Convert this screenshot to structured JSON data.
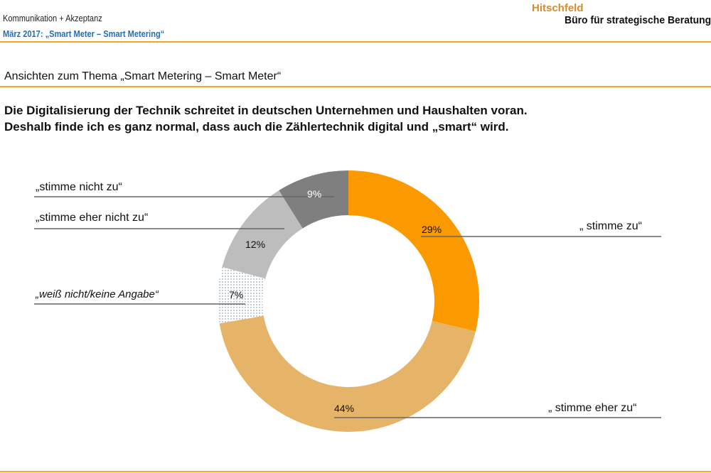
{
  "header": {
    "line1": "Kommunikation + Akzeptanz",
    "line2": "März 2017: „Smart Meter – Smart Metering“",
    "brand_name": "Hitschfeld",
    "brand_sub": "Büro für strategische Beratung"
  },
  "section_title": "Ansichten zum Thema „Smart Metering – Smart Meter“",
  "question": {
    "line1": "Die Digitalisierung der Technik schreitet in deutschen Unternehmen und Haushalten voran.",
    "line2": "Deshalb finde ich es ganz normal, dass auch die Zählertechnik digital und „smart“ wird."
  },
  "colors": {
    "accent": "#f5a623",
    "blue": "#1f6fbf"
  },
  "chart_data": {
    "type": "pie",
    "donut": true,
    "start": "top",
    "direction": "clockwise",
    "slices": [
      {
        "name": "„ stimme zu“",
        "value": 29,
        "label": "29%",
        "color": "#fa9a00"
      },
      {
        "name": "„ stimme eher zu“",
        "value": 44,
        "label": "44%",
        "color": "#e6b468"
      },
      {
        "name": "„weiß nicht/keine Angabe“",
        "value": 7,
        "label": "7%",
        "color": "dotted"
      },
      {
        "name": "„stimme eher nicht zu“",
        "value": 12,
        "label": "12%",
        "color": "#bdbdbd"
      },
      {
        "name": "„stimme nicht zu“",
        "value": 9,
        "label": "9%",
        "color": "#7f7f7f"
      }
    ]
  }
}
